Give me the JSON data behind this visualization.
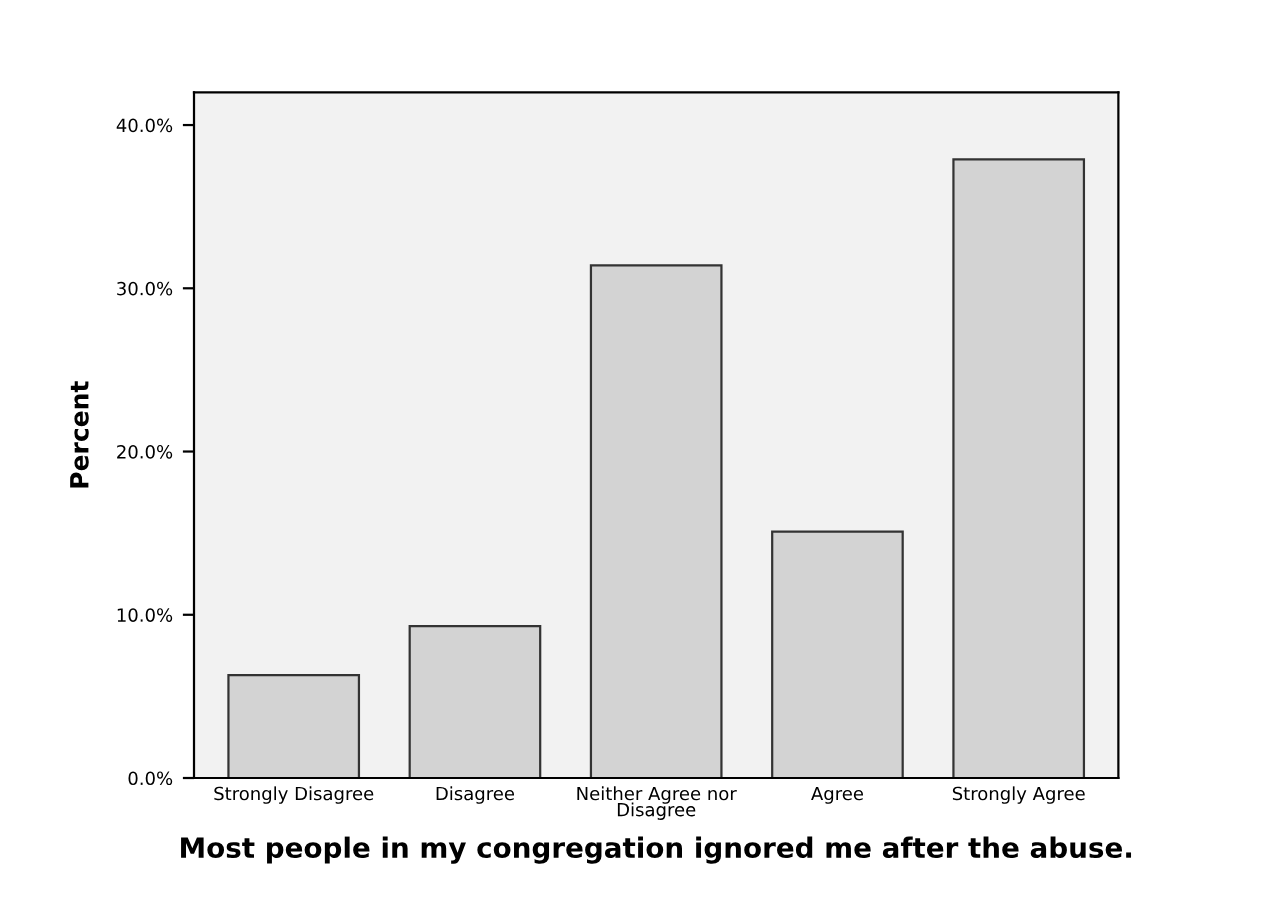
{
  "chart_data": {
    "type": "bar",
    "xlabel": "Most people in my congregation ignored me after the abuse.",
    "ylabel": "Percent",
    "categories": [
      "Strongly Disagree",
      "Disagree",
      "Neither Agree nor\nDisagree",
      "Agree",
      "Strongly Agree"
    ],
    "values": [
      6.3,
      9.3,
      31.4,
      15.1,
      37.9
    ],
    "color": "#d3d3d3",
    "ylim": [
      0,
      42
    ],
    "yticks": [
      {
        "value": 0,
        "label": "0.0%"
      },
      {
        "value": 10,
        "label": "10.0%"
      },
      {
        "value": 20,
        "label": "20.0%"
      },
      {
        "value": 30,
        "label": "30.0%"
      },
      {
        "value": 40,
        "label": "40.0%"
      }
    ],
    "grid": false
  }
}
